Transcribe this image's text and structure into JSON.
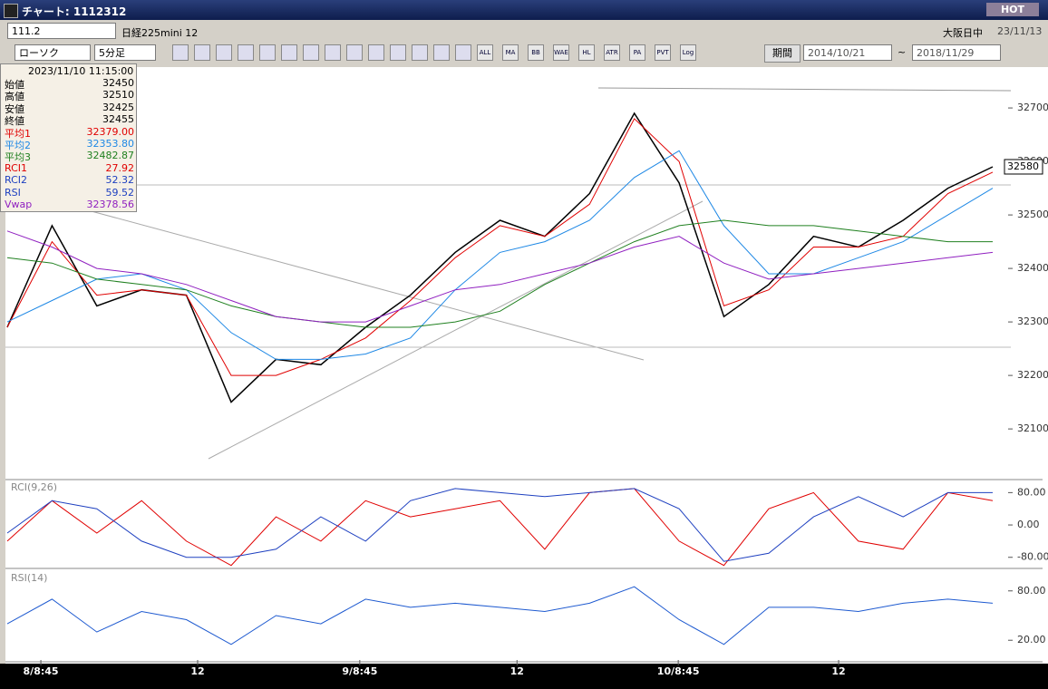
{
  "window": {
    "title": "チャート: 1112312",
    "hot": "HOT"
  },
  "toolbar": {
    "code": "111.2",
    "name": "日経225mini 12",
    "market": "大阪日中",
    "date": "23/11/13",
    "chart_type": "ローソク",
    "interval": "5分足",
    "icon_labels": [
      "ALL",
      "MA",
      "BB",
      "WAE",
      "HL",
      "ATR",
      "PA",
      "PVT",
      "Log"
    ],
    "period": "期間",
    "from": "2014/10/21",
    "tilde": "~",
    "to": "2018/11/29"
  },
  "info": {
    "datetime": "2023/11/10  11:15:00",
    "rows": [
      {
        "label": "始値",
        "value": "32450",
        "color": "#000000"
      },
      {
        "label": "高値",
        "value": "32510",
        "color": "#000000"
      },
      {
        "label": "安値",
        "value": "32425",
        "color": "#000000"
      },
      {
        "label": "終値",
        "value": "32455",
        "color": "#000000"
      },
      {
        "label": "平均1",
        "value": "32379.00",
        "color": "#e00000"
      },
      {
        "label": "平均2",
        "value": "32353.80",
        "color": "#1e88e5"
      },
      {
        "label": "平均3",
        "value": "32482.87",
        "color": "#208020"
      },
      {
        "label": "RCI1",
        "value": "27.92",
        "color": "#e00000"
      },
      {
        "label": "RCI2",
        "value": "52.32",
        "color": "#1e40c0"
      },
      {
        "label": "RSI",
        "value": "59.52",
        "color": "#1e40c0"
      },
      {
        "label": "Vwap",
        "value": "32378.56",
        "color": "#9020c0"
      }
    ]
  },
  "price_chart": {
    "type": "line",
    "ylim": [
      32007,
      32773
    ],
    "yticks": [
      32100,
      32200,
      32300,
      32400,
      32500,
      32600,
      32700
    ],
    "last_label": "32580",
    "xlim": [
      0,
      22
    ],
    "xticks": [
      {
        "value": 0.75,
        "label": "8/8:45"
      },
      {
        "value": 4.25,
        "label": "12"
      },
      {
        "value": 7.87,
        "label": "9/8:45"
      },
      {
        "value": 11.38,
        "label": "12"
      },
      {
        "value": 14.98,
        "label": "10/8:45"
      },
      {
        "value": 18.56,
        "label": "12"
      }
    ],
    "series": [
      {
        "name": "終値",
        "color": "#000000",
        "values": [
          32290,
          32480,
          32330,
          32360,
          32350,
          32150,
          32230,
          32220,
          32290,
          32350,
          32430,
          32490,
          32460,
          32540,
          32690,
          32560,
          32310,
          32370,
          32460,
          32440,
          32490,
          32550,
          32590
        ]
      },
      {
        "name": "平均1",
        "color": "#e00000",
        "values": [
          32290,
          32450,
          32350,
          32360,
          32350,
          32200,
          32200,
          32230,
          32270,
          32340,
          32420,
          32480,
          32460,
          32520,
          32680,
          32600,
          32330,
          32360,
          32440,
          32440,
          32460,
          32540,
          32580
        ]
      },
      {
        "name": "平均2",
        "color": "#1e88e5",
        "values": [
          32300,
          32340,
          32380,
          32390,
          32360,
          32280,
          32230,
          32230,
          32240,
          32270,
          32360,
          32430,
          32450,
          32490,
          32570,
          32620,
          32480,
          32390,
          32390,
          32420,
          32450,
          32500,
          32550
        ]
      },
      {
        "name": "平均3",
        "color": "#208020",
        "values": [
          32420,
          32410,
          32380,
          32370,
          32360,
          32330,
          32310,
          32300,
          32290,
          32290,
          32300,
          32320,
          32370,
          32410,
          32450,
          32480,
          32490,
          32480,
          32480,
          32470,
          32460,
          32450,
          32450
        ]
      },
      {
        "name": "Vwap",
        "color": "#9020c0",
        "values": [
          32470,
          32440,
          32400,
          32390,
          32370,
          32340,
          32310,
          32300,
          32300,
          32330,
          32360,
          32370,
          32390,
          32410,
          32440,
          32460,
          32410,
          32380,
          32390,
          32400,
          32410,
          32420,
          32430
        ]
      }
    ]
  },
  "rci_chart": {
    "type": "line",
    "label": "RCI(9,26)",
    "ylim": [
      -103,
      110
    ],
    "yticks": [
      {
        "value": 80,
        "label": "80.00"
      },
      {
        "value": 0,
        "label": "0.00"
      },
      {
        "value": -80,
        "label": "-80.00"
      }
    ],
    "series": [
      {
        "name": "RCI1",
        "color": "#e00000",
        "values": [
          -40,
          60,
          -20,
          60,
          -40,
          -100,
          20,
          -40,
          60,
          20,
          40,
          60,
          -60,
          80,
          90,
          -40,
          -100,
          40,
          80,
          -40,
          -60,
          80,
          60
        ]
      },
      {
        "name": "RCI2",
        "color": "#1e40c0",
        "values": [
          -20,
          60,
          40,
          -40,
          -80,
          -80,
          -60,
          20,
          -40,
          60,
          90,
          80,
          70,
          80,
          90,
          40,
          -90,
          -70,
          20,
          70,
          20,
          80,
          80
        ]
      }
    ]
  },
  "rsi_chart": {
    "type": "line",
    "label": "RSI(14)",
    "ylim": [
      -4,
      104
    ],
    "yticks": [
      {
        "value": 80,
        "label": "80.00"
      },
      {
        "value": 20,
        "label": "20.00"
      }
    ],
    "series": [
      {
        "name": "RSI",
        "color": "#1e5ad0",
        "values": [
          40,
          70,
          30,
          55,
          45,
          15,
          50,
          40,
          70,
          60,
          65,
          60,
          55,
          65,
          85,
          45,
          15,
          60,
          60,
          55,
          65,
          70,
          65
        ]
      }
    ]
  }
}
